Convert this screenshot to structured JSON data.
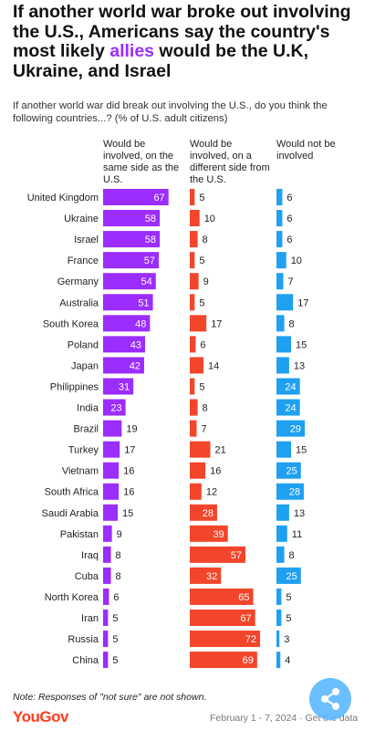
{
  "header": {
    "title_pre": "If another world war broke out involving the U.S., Americans say the country's most likely ",
    "title_highlight": "allies",
    "title_post": " would be the U.K, Ukraine, and Israel",
    "subtitle": "If another world war did break out involving the U.S., do you think the following countries...? (% of U.S. adult citizens)"
  },
  "colors": {
    "same_side": "#9b2dff",
    "different_side": "#f2452a",
    "not_involved": "#1fa0f0",
    "highlight": "#9b2dff"
  },
  "chart_data": {
    "type": "bar",
    "categories": [
      "United Kingdom",
      "Ukraine",
      "Israel",
      "France",
      "Germany",
      "Australia",
      "South Korea",
      "Poland",
      "Japan",
      "Philippines",
      "India",
      "Brazil",
      "Turkey",
      "Vietnam",
      "South Africa",
      "Saudi Arabia",
      "Pakistan",
      "Iraq",
      "Cuba",
      "North Korea",
      "Iran",
      "Russia",
      "China"
    ],
    "series": [
      {
        "name": "Would be involved, on the same side as the U.S.",
        "values": [
          67,
          58,
          58,
          57,
          54,
          51,
          48,
          43,
          42,
          31,
          23,
          19,
          17,
          16,
          16,
          15,
          9,
          8,
          8,
          6,
          5,
          5,
          5
        ]
      },
      {
        "name": "Would be involved, on a different side from the U.S.",
        "values": [
          5,
          10,
          8,
          5,
          9,
          5,
          17,
          6,
          14,
          5,
          8,
          7,
          21,
          16,
          12,
          28,
          39,
          57,
          32,
          65,
          67,
          72,
          69
        ]
      },
      {
        "name": "Would not be involved",
        "values": [
          6,
          6,
          6,
          10,
          7,
          17,
          8,
          15,
          13,
          24,
          24,
          29,
          15,
          25,
          28,
          13,
          11,
          8,
          25,
          5,
          5,
          3,
          4
        ]
      }
    ]
  },
  "footer": {
    "note": "Note: Responses of \"not sure\" are not shown.",
    "logo": "YouGov",
    "date": "February 1 - 7, 2024 · Get the data"
  },
  "share_icon": "share-icon"
}
